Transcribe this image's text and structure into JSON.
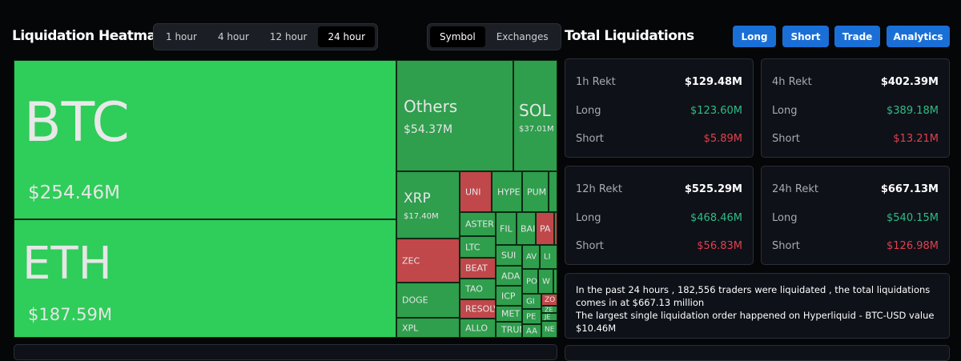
{
  "header": {
    "title": "Liquidation Heatmap",
    "time_tabs": [
      "1 hour",
      "4 hour",
      "12 hour",
      "24 hour"
    ],
    "active_time_tab": "24 hour",
    "group_tabs": [
      "Symbol",
      "Exchanges"
    ],
    "active_group_tab": "Symbol"
  },
  "heatmap": {
    "btc": {
      "label": "BTC",
      "value": "$254.46M"
    },
    "eth": {
      "label": "ETH",
      "value": "$187.59M"
    },
    "others": {
      "label": "Others",
      "value": "$54.37M"
    },
    "sol": {
      "label": "SOL",
      "value": "$37.01M"
    },
    "xrp": {
      "label": "XRP",
      "value": "$17.40M"
    },
    "small": [
      "ZEC",
      "DOGE",
      "XPL",
      "UNI",
      "HYPE",
      "PUM",
      "ASTER",
      "LTC",
      "BEAT",
      "TAO",
      "RESOLV",
      "ALLO",
      "FIL",
      "BAI",
      "PA",
      "SUI",
      "ADA",
      "ICP",
      "MET",
      "TRUM",
      "AV",
      "LI",
      "PO",
      "W",
      "GI",
      "ZO",
      "ZE",
      "PE",
      "JE",
      "AA",
      "NE"
    ],
    "colors": {
      "up_large": "#2fcd5a",
      "up": "#2f9e4d",
      "down": "#c0474a"
    }
  },
  "totals": {
    "title": "Total Liquidations",
    "buttons": [
      "Long",
      "Short",
      "Trade",
      "Analytics"
    ],
    "cards": [
      {
        "label": "1h Rekt",
        "total": "$129.48M",
        "long_label": "Long",
        "long": "$123.60M",
        "short_label": "Short",
        "short": "$5.89M"
      },
      {
        "label": "4h Rekt",
        "total": "$402.39M",
        "long_label": "Long",
        "long": "$389.18M",
        "short_label": "Short",
        "short": "$13.21M"
      },
      {
        "label": "12h Rekt",
        "total": "$525.29M",
        "long_label": "Long",
        "long": "$468.46M",
        "short_label": "Short",
        "short": "$56.83M"
      },
      {
        "label": "24h Rekt",
        "total": "$667.13M",
        "long_label": "Long",
        "long": "$540.15M",
        "short_label": "Short",
        "short": "$126.98M"
      }
    ],
    "summary_line1": "In the past 24 hours , 182,556 traders were liquidated , the total liquidations comes in at $667.13 million",
    "summary_line2": "The largest single liquidation order happened on Hyperliquid - BTC-USD value $10.46M"
  }
}
